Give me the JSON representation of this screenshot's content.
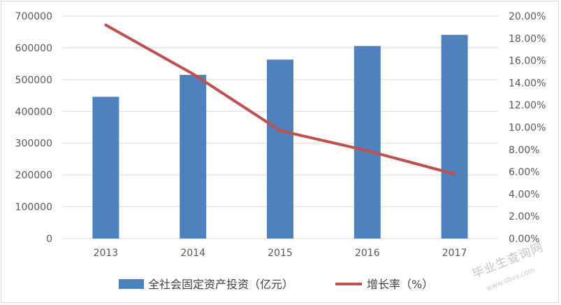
{
  "chart_data": {
    "type": "bar",
    "categories": [
      "2013",
      "2014",
      "2015",
      "2016",
      "2017"
    ],
    "series": [
      {
        "name": "全社会固定资产投资（亿元）",
        "kind": "bar",
        "axis": "left",
        "color": "#4f81bd",
        "values": [
          446000,
          515000,
          563000,
          606000,
          641000
        ]
      },
      {
        "name": "增长率（%）",
        "kind": "line",
        "axis": "right",
        "color": "#c0504d",
        "values": [
          0.192,
          0.148,
          0.097,
          0.079,
          0.058
        ]
      }
    ],
    "y_left": {
      "lim": [
        0,
        700000
      ],
      "ticks": [
        "0",
        "100000",
        "200000",
        "300000",
        "400000",
        "500000",
        "600000",
        "700000"
      ]
    },
    "y_right": {
      "lim": [
        0,
        0.2
      ],
      "ticks": [
        "0.00%",
        "2.00%",
        "4.00%",
        "6.00%",
        "8.00%",
        "10.00%",
        "12.00%",
        "14.00%",
        "16.00%",
        "18.00%",
        "20.00%"
      ]
    },
    "grid": true,
    "legend": "bottom"
  },
  "watermark": {
    "text": "毕业生查询网",
    "subtext": "www.sbvv.com"
  }
}
